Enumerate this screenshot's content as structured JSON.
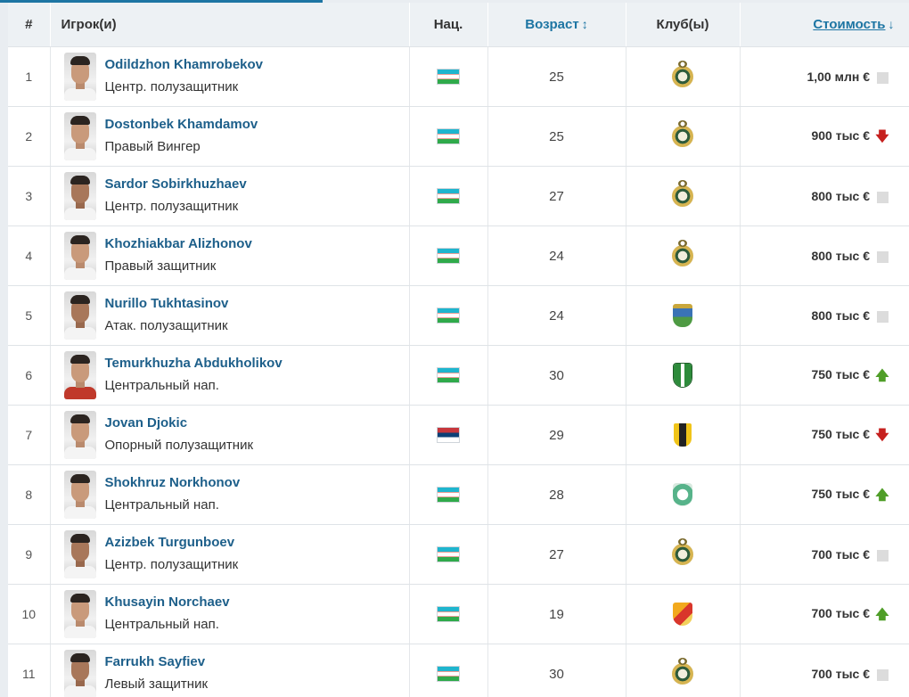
{
  "headers": {
    "num": "#",
    "player": "Игрок(и)",
    "nat": "Нац.",
    "age": "Возраст",
    "age_sort_icon": "↕",
    "club": "Клуб(ы)",
    "value": "Стоимость",
    "value_sort_icon": "↓"
  },
  "colors": {
    "link": "#1d75a3",
    "player_name": "#1d5f8a",
    "trend_up": "#4f9e28",
    "trend_down": "#c6201e",
    "trend_same": "#dcdcdc"
  },
  "rows": [
    {
      "num": "1",
      "name": "Odildzhon Khamrobekov",
      "position": "Центр. полузащитник",
      "flag": "uz-flag-icon",
      "age": "25",
      "club": "pakhtakor-crest-icon",
      "value": "1,00 млн €",
      "trend": "same"
    },
    {
      "num": "2",
      "name": "Dostonbek Khamdamov",
      "position": "Правый Вингер",
      "flag": "uz-flag-icon",
      "age": "25",
      "club": "pakhtakor-crest-icon",
      "value": "900 тыс €",
      "trend": "down"
    },
    {
      "num": "3",
      "name": "Sardor Sobirkhuzhaev",
      "position": "Центр. полузащитник",
      "flag": "uz-flag-icon",
      "age": "27",
      "club": "pakhtakor-crest-icon",
      "value": "800 тыс €",
      "trend": "same"
    },
    {
      "num": "4",
      "name": "Khozhiakbar Alizhonov",
      "position": "Правый защитник",
      "flag": "uz-flag-icon",
      "age": "24",
      "club": "pakhtakor-crest-icon",
      "value": "800 тыс €",
      "trend": "same"
    },
    {
      "num": "5",
      "name": "Nurillo Tukhtasinov",
      "position": "Атак. полузащитник",
      "flag": "uz-flag-icon",
      "age": "24",
      "club": "blue-green-crest-icon",
      "value": "800 тыс €",
      "trend": "same"
    },
    {
      "num": "6",
      "name": "Temurkhuzha Abdukholikov",
      "position": "Центральный нап.",
      "flag": "uz-flag-icon",
      "age": "30",
      "club": "green-red-crest-icon",
      "value": "750 тыс €",
      "trend": "up"
    },
    {
      "num": "7",
      "name": "Jovan Djokic",
      "position": "Опорный полузащитник",
      "flag": "rs-flag-icon",
      "age": "29",
      "club": "yellow-black-crest-icon",
      "value": "750 тыс €",
      "trend": "down"
    },
    {
      "num": "8",
      "name": "Shokhruz Norkhonov",
      "position": "Центральный нап.",
      "flag": "uz-flag-icon",
      "age": "28",
      "club": "teal-crest-icon",
      "value": "750 тыс €",
      "trend": "up"
    },
    {
      "num": "9",
      "name": "Azizbek Turgunboev",
      "position": "Центр. полузащитник",
      "flag": "uz-flag-icon",
      "age": "27",
      "club": "pakhtakor-crest-icon",
      "value": "700 тыс €",
      "trend": "same"
    },
    {
      "num": "10",
      "name": "Khusayin Norchaev",
      "position": "Центральный нап.",
      "flag": "uz-flag-icon",
      "age": "19",
      "club": "orange-crest-icon",
      "value": "700 тыс €",
      "trend": "up"
    },
    {
      "num": "11",
      "name": "Farrukh Sayfiev",
      "position": "Левый защитник",
      "flag": "uz-flag-icon",
      "age": "30",
      "club": "pakhtakor-crest-icon",
      "value": "700 тыс €",
      "trend": "same"
    }
  ]
}
